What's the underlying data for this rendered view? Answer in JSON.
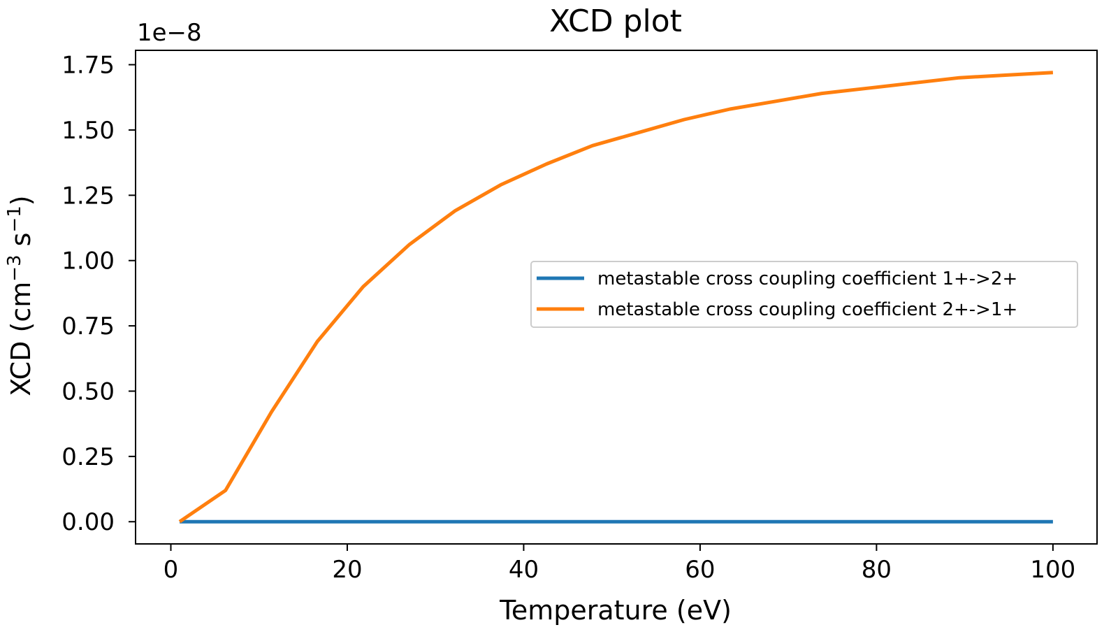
{
  "chart_data": {
    "type": "line",
    "title": "XCD plot",
    "xlabel": "Temperature (eV)",
    "ylabel": {
      "prefix": "XCD (cm",
      "sup1": "−3",
      "middle": " s",
      "sup2": "−1",
      "suffix": ")"
    },
    "y_offset_label": "1e−8",
    "xlim": [
      -4,
      105
    ],
    "ylim": [
      -0.085,
      1.805
    ],
    "x_ticks": [
      0,
      20,
      40,
      60,
      80,
      100
    ],
    "x_tick_labels": [
      "0",
      "20",
      "40",
      "60",
      "80",
      "100"
    ],
    "y_ticks": [
      0,
      0.25,
      0.5,
      0.75,
      1.0,
      1.25,
      1.5,
      1.75
    ],
    "y_tick_labels": [
      "0.00",
      "0.25",
      "0.50",
      "0.75",
      "1.00",
      "1.25",
      "1.50",
      "1.75"
    ],
    "grid": false,
    "legend_position": "center-right",
    "series": [
      {
        "name": "metastable cross coupling coefficient 1+->2+",
        "color": "#1f77b4",
        "x": [
          1,
          100
        ],
        "y": [
          0,
          0
        ]
      },
      {
        "name": "metastable cross coupling coefficient 2+->1+",
        "color": "#ff7f0e",
        "x": [
          1,
          6.2,
          11.4,
          16.6,
          21.8,
          27,
          32.2,
          37.4,
          42.6,
          47.8,
          53,
          58.2,
          63.4,
          68.6,
          73.8,
          79,
          84.2,
          89.4,
          94.6,
          100
        ],
        "y": [
          0,
          0.12,
          0.42,
          0.69,
          0.9,
          1.06,
          1.19,
          1.29,
          1.37,
          1.44,
          1.49,
          1.54,
          1.58,
          1.61,
          1.64,
          1.66,
          1.68,
          1.7,
          1.71,
          1.72
        ]
      }
    ]
  }
}
